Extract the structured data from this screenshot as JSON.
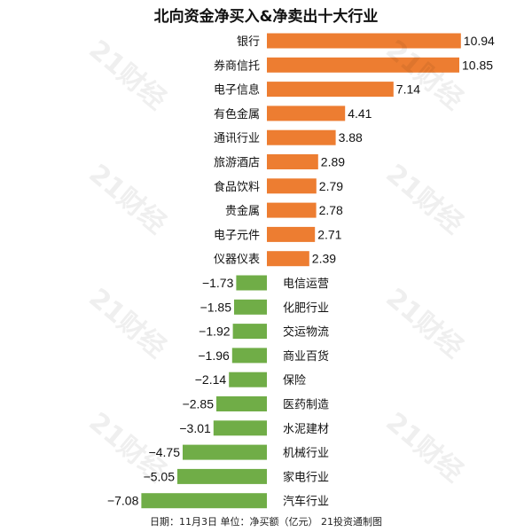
{
  "chart_data": {
    "type": "bar",
    "orientation": "horizontal",
    "title": "北向资金净买入&净卖出十大行业",
    "footer": "日期：11月3日 单位：净买额（亿元） 21投资通制图",
    "categories": [
      "银行",
      "券商信托",
      "电子信息",
      "有色金属",
      "通讯行业",
      "旅游酒店",
      "食品饮料",
      "贵金属",
      "电子元件",
      "仪器仪表",
      "电信运营",
      "化肥行业",
      "交运物流",
      "商业百货",
      "保险",
      "医药制造",
      "水泥建材",
      "机械行业",
      "家电行业",
      "汽车行业"
    ],
    "values": [
      10.94,
      10.85,
      7.14,
      4.41,
      3.88,
      2.89,
      2.79,
      2.78,
      2.71,
      2.39,
      -1.73,
      -1.85,
      -1.92,
      -1.96,
      -2.14,
      -2.85,
      -3.01,
      -4.75,
      -5.05,
      -7.08
    ],
    "value_labels": [
      "10.94",
      "10.85",
      "7.14",
      "4.41",
      "3.88",
      "2.89",
      "2.79",
      "2.78",
      "2.71",
      "2.39",
      "−1.73",
      "−1.85",
      "−1.92",
      "−1.96",
      "−2.14",
      "−2.85",
      "−3.01",
      "−4.75",
      "−5.05",
      "−7.08"
    ],
    "xlim": [
      -7.08,
      10.94
    ],
    "grid": false,
    "legend": "none",
    "colors": {
      "positive": "#ED7D31",
      "negative": "#70AD47"
    },
    "watermark": "21财经"
  }
}
